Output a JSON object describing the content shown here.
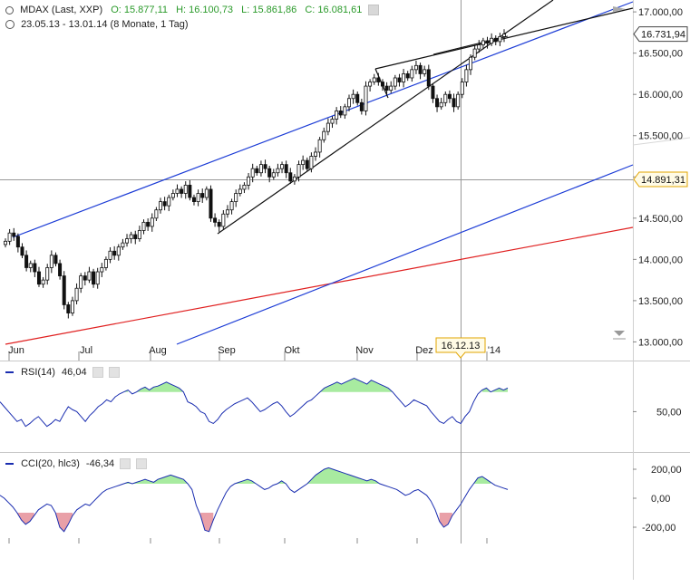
{
  "header": {
    "symbol": "MDAX (Last, XXP)",
    "open": "O: 15.877,11",
    "high": "H: 16.100,73",
    "low": "L: 15.861,86",
    "close": "C: 16.081,61",
    "range": "23.05.13 - 13.01.14 (8 Monate, 1 Tag)"
  },
  "crosshair": {
    "date_label": "16.12.13",
    "price_label": "14.891,31"
  },
  "last_price_label": "16.731,94",
  "indicators": {
    "rsi": {
      "label": "RSI(14)",
      "value": "46,04"
    },
    "cci": {
      "label": "CCI(20, hlc3)",
      "value": "-46,34"
    }
  },
  "colors": {
    "candle": "#111111",
    "trend_blue": "#1c3cd6",
    "trend_red": "#e02020",
    "trend_black": "#111111",
    "indicator_line": "#1a2db0",
    "rsi_overbought_fill": "#a8eba0",
    "cci_positive_fill": "#a8eba0",
    "cci_negative_fill": "#e9a0a8",
    "crosshair": "#999999"
  },
  "chart_data": [
    {
      "type": "candlestick",
      "x_ticks": [
        "Jun",
        "Jul",
        "Aug",
        "Sep",
        "Okt",
        "Nov",
        "Dez",
        "'14"
      ],
      "y_ticks": [
        "17.000,00",
        "16.500,00",
        "16.000,00",
        "15.500,00",
        "15.000,00",
        "14.500,00",
        "14.000,00",
        "13.500,00",
        "13.000,00"
      ],
      "ylim": [
        12950,
        17100
      ],
      "close": [
        14220,
        14320,
        14280,
        14150,
        14050,
        13900,
        13950,
        13850,
        13700,
        13750,
        13900,
        14050,
        13950,
        13800,
        13450,
        13350,
        13500,
        13650,
        13800,
        13750,
        13850,
        13700,
        13850,
        13900,
        14000,
        14100,
        14050,
        14150,
        14200,
        14250,
        14300,
        14250,
        14350,
        14450,
        14400,
        14500,
        14600,
        14700,
        14650,
        14750,
        14800,
        14850,
        14800,
        14900,
        14750,
        14700,
        14800,
        14750,
        14850,
        14500,
        14450,
        14400,
        14550,
        14600,
        14700,
        14800,
        14850,
        14900,
        15000,
        15100,
        15050,
        15150,
        15100,
        15000,
        15050,
        15100,
        15150,
        15050,
        14950,
        15000,
        15150,
        15200,
        15100,
        15250,
        15300,
        15450,
        15550,
        15650,
        15700,
        15800,
        15750,
        15850,
        15950,
        16000,
        15900,
        15800,
        16100,
        16150,
        16200,
        16150,
        16100,
        16050,
        16100,
        16200,
        16150,
        16250,
        16200,
        16300,
        16350,
        16250,
        16300,
        16100,
        15950,
        15850,
        15900,
        16000,
        15950,
        15850,
        16000,
        16150,
        16300,
        16450,
        16550,
        16600,
        16650,
        16620,
        16680,
        16640,
        16700,
        16731
      ],
      "trendlines_note": "Drawn trendlines and channel lines as shown"
    },
    {
      "type": "line",
      "name": "RSI(14)",
      "y_ticks": [
        "50,00"
      ],
      "ylim": [
        20,
        90
      ],
      "values": [
        60,
        55,
        50,
        45,
        40,
        42,
        35,
        38,
        42,
        45,
        40,
        35,
        38,
        42,
        40,
        48,
        55,
        52,
        50,
        45,
        40,
        46,
        50,
        55,
        58,
        62,
        60,
        65,
        68,
        70,
        72,
        68,
        70,
        73,
        75,
        72,
        75,
        76,
        78,
        80,
        78,
        76,
        74,
        70,
        60,
        58,
        55,
        50,
        48,
        40,
        38,
        42,
        48,
        52,
        55,
        58,
        60,
        62,
        64,
        60,
        55,
        50,
        52,
        55,
        58,
        60,
        56,
        50,
        45,
        48,
        52,
        56,
        60,
        62,
        66,
        70,
        74,
        76,
        78,
        80,
        78,
        80,
        82,
        84,
        82,
        80,
        78,
        82,
        80,
        78,
        76,
        74,
        70,
        65,
        60,
        55,
        58,
        62,
        60,
        58,
        56,
        50,
        45,
        40,
        38,
        42,
        45,
        40,
        38,
        45,
        50,
        60,
        68,
        72,
        74,
        70,
        72,
        74,
        72,
        74
      ]
    },
    {
      "type": "line",
      "name": "CCI(20, hlc3)",
      "y_ticks": [
        "200,00",
        "0,00",
        "-200,00"
      ],
      "ylim": [
        -300,
        300
      ],
      "values": [
        20,
        0,
        -30,
        -60,
        -100,
        -150,
        -180,
        -160,
        -120,
        -80,
        -60,
        -40,
        -50,
        -100,
        -200,
        -230,
        -180,
        -120,
        -80,
        -60,
        -40,
        -50,
        -20,
        10,
        40,
        60,
        70,
        80,
        90,
        100,
        110,
        100,
        110,
        120,
        130,
        120,
        110,
        130,
        140,
        150,
        160,
        150,
        140,
        130,
        100,
        60,
        -50,
        -120,
        -220,
        -230,
        -150,
        -80,
        -20,
        40,
        80,
        100,
        110,
        120,
        130,
        120,
        100,
        80,
        60,
        70,
        90,
        100,
        120,
        100,
        60,
        40,
        60,
        80,
        100,
        130,
        160,
        180,
        200,
        210,
        200,
        190,
        180,
        170,
        160,
        150,
        140,
        130,
        120,
        130,
        120,
        100,
        90,
        80,
        70,
        60,
        40,
        20,
        30,
        50,
        60,
        40,
        20,
        -20,
        -80,
        -160,
        -200,
        -180,
        -120,
        -80,
        -40,
        10,
        60,
        100,
        140,
        150,
        130,
        110,
        90,
        80,
        70,
        60
      ]
    }
  ]
}
